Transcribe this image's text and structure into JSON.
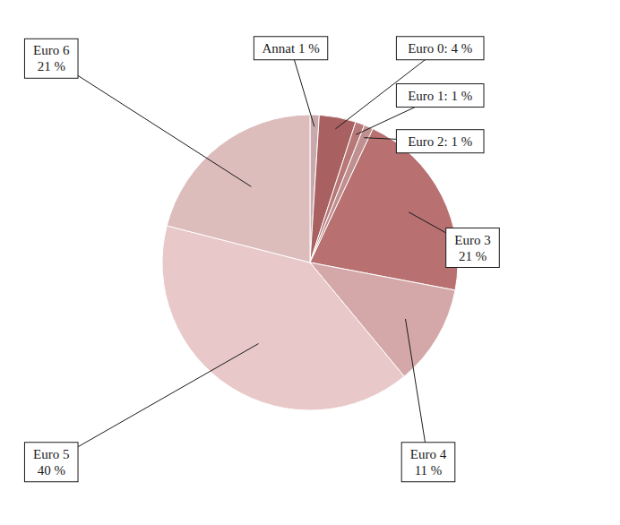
{
  "chart_data": {
    "type": "pie",
    "categories": [
      "Annat",
      "Euro 0",
      "Euro 1",
      "Euro 2",
      "Euro 3",
      "Euro 4",
      "Euro 5",
      "Euro 6"
    ],
    "values": [
      1,
      4,
      1,
      1,
      21,
      11,
      40,
      21
    ],
    "value_labels": [
      "Annat 1 %",
      "Euro 0: 4 %",
      "Euro 1: 1 %",
      "Euro 2: 1 %",
      "Euro 3\n21 %",
      "Euro 4\n11 %",
      "Euro 5\n40 %",
      "Euro 6\n21 %"
    ],
    "colors": [
      "#c8a8ac",
      "#a86060",
      "#b87878",
      "#c09090",
      "#b87070",
      "#d4a8a8",
      "#e8c8c8",
      "#ddbcbc"
    ],
    "data_labels": true
  }
}
